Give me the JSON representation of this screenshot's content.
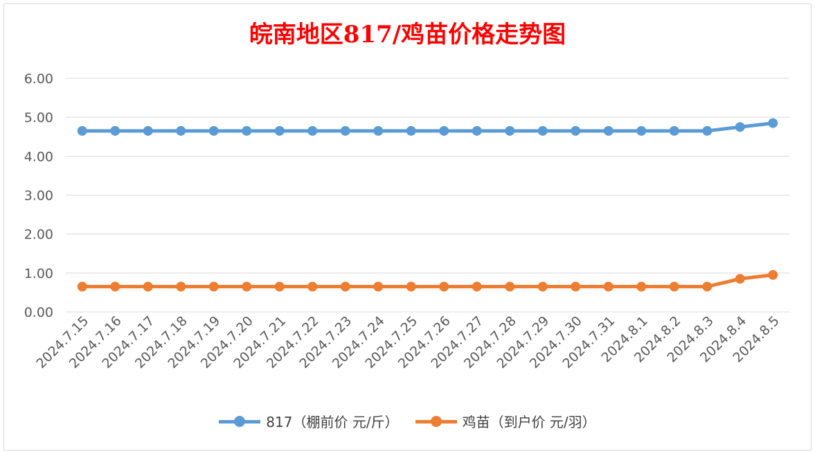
{
  "chart_data": {
    "type": "line",
    "title": "皖南地区817/鸡苗价格走势图",
    "categories": [
      "2024.7.15",
      "2024.7.16",
      "2024.7.17",
      "2024.7.18",
      "2024.7.19",
      "2024.7.20",
      "2024.7.21",
      "2024.7.22",
      "2024.7.23",
      "2024.7.24",
      "2024.7.25",
      "2024.7.26",
      "2024.7.27",
      "2024.7.28",
      "2024.7.29",
      "2024.7.30",
      "2024.7.31",
      "2024.8.1",
      "2024.8.2",
      "2024.8.3",
      "2024.8.4",
      "2024.8.5"
    ],
    "series": [
      {
        "name": "817（棚前价 元/斤）",
        "color": "#5b9bd5",
        "values": [
          4.65,
          4.65,
          4.65,
          4.65,
          4.65,
          4.65,
          4.65,
          4.65,
          4.65,
          4.65,
          4.65,
          4.65,
          4.65,
          4.65,
          4.65,
          4.65,
          4.65,
          4.65,
          4.65,
          4.65,
          4.75,
          4.85
        ]
      },
      {
        "name": "鸡苗（到户价 元/羽）",
        "color": "#ed7d31",
        "values": [
          0.65,
          0.65,
          0.65,
          0.65,
          0.65,
          0.65,
          0.65,
          0.65,
          0.65,
          0.65,
          0.65,
          0.65,
          0.65,
          0.65,
          0.65,
          0.65,
          0.65,
          0.65,
          0.65,
          0.65,
          0.85,
          0.95
        ]
      }
    ],
    "yticks": [
      "0.00",
      "1.00",
      "2.00",
      "3.00",
      "4.00",
      "5.00",
      "6.00"
    ],
    "ylim": [
      0,
      6
    ],
    "grid": true,
    "legend_position": "bottom",
    "title_color": "#ff0000"
  }
}
